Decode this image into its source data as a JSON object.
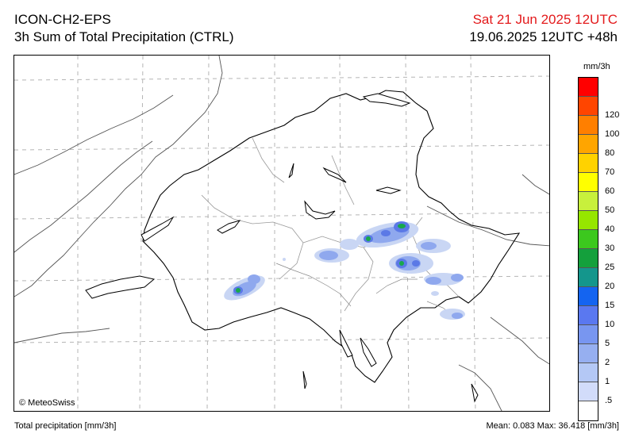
{
  "header": {
    "model": "ICON-CH2-EPS",
    "product": "3h Sum of Total Precipitation (CTRL)",
    "valid_time": "Sat 21 Jun 2025 12UTC",
    "run_info": "19.06.2025 12UTC +48h"
  },
  "map": {
    "copyright": "© MeteoSwiss",
    "precip_colors": {
      "light": "#c9d6f4",
      "medium": "#8fa8ee",
      "strong": "#5b79e6",
      "peak": "#18a84c",
      "extreme": "#7ad43c"
    }
  },
  "legend": {
    "unit": "mm/3h",
    "levels": [
      {
        "label": "",
        "color": "#ff0000"
      },
      {
        "label": "120",
        "color": "#ff4500"
      },
      {
        "label": "100",
        "color": "#ff7f00"
      },
      {
        "label": "80",
        "color": "#ffa500"
      },
      {
        "label": "70",
        "color": "#ffd200"
      },
      {
        "label": "60",
        "color": "#ffff00"
      },
      {
        "label": "50",
        "color": "#c8f03c"
      },
      {
        "label": "40",
        "color": "#96e600"
      },
      {
        "label": "30",
        "color": "#3cc81e"
      },
      {
        "label": "25",
        "color": "#14a03c"
      },
      {
        "label": "20",
        "color": "#14968c"
      },
      {
        "label": "15",
        "color": "#1464f0"
      },
      {
        "label": "10",
        "color": "#5a78f0"
      },
      {
        "label": "5",
        "color": "#7896f0"
      },
      {
        "label": "2",
        "color": "#96aff0"
      },
      {
        "label": "1",
        "color": "#b4c8f5"
      },
      {
        "label": ".5",
        "color": "#d2dcfa"
      },
      {
        "label": "",
        "color": "#ffffff"
      }
    ]
  },
  "footer": {
    "left": "Total precipitation [mm/3h]",
    "right": "Mean:   0.083 Max:  36.418 [mm/3h]"
  }
}
